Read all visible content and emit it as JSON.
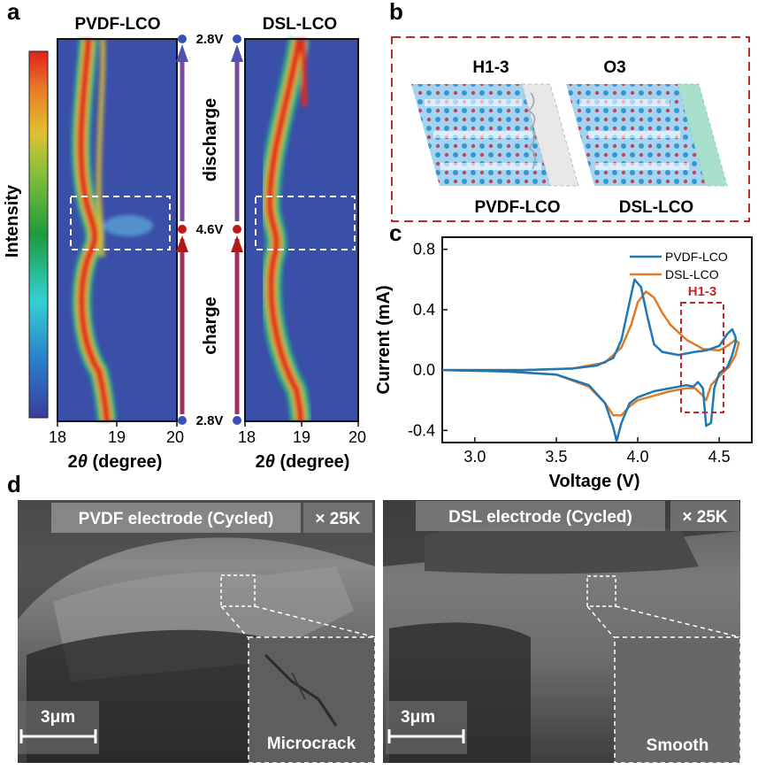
{
  "panels": {
    "a": "a",
    "b": "b",
    "c": "c",
    "d": "d"
  },
  "panel_a": {
    "left_title": "PVDF-LCO",
    "right_title": "DSL-LCO",
    "colorbar_label": "Intensity",
    "xticks": [
      "18",
      "19",
      "20"
    ],
    "right_xticks": [
      "18",
      "19",
      "20"
    ],
    "xlabel_pre": "2",
    "xlabel_theta": "θ",
    "xlabel_post": " (degree)",
    "voltage_top": "2.8V",
    "voltage_mid": "4.6V",
    "voltage_bottom": "2.8V",
    "arrow_up": "discharge",
    "arrow_down": "charge"
  },
  "panel_b": {
    "phase_left": "H1-3",
    "phase_right": "O3",
    "sample_left": "PVDF-LCO",
    "sample_right": "DSL-LCO"
  },
  "chart_data": {
    "type": "line",
    "xlabel": "Voltage (V)",
    "ylabel": "Current (mA)",
    "xlim": [
      2.8,
      4.7
    ],
    "ylim": [
      -0.48,
      0.88
    ],
    "xticks": [
      "3.0",
      "3.5",
      "4.0",
      "4.5"
    ],
    "yticks": [
      "0.8",
      "0.4",
      "0.0",
      "-0.4"
    ],
    "annotation": "H1-3",
    "series": [
      {
        "name": "PVDF-LCO",
        "color": "#1f77b4",
        "x": [
          2.8,
          3.3,
          3.6,
          3.75,
          3.85,
          3.9,
          3.95,
          3.98,
          4.02,
          4.06,
          4.1,
          4.15,
          4.25,
          4.35,
          4.42,
          4.5,
          4.55,
          4.58,
          4.6,
          4.6,
          4.58,
          4.55,
          4.5,
          4.47,
          4.45,
          4.42,
          4.4,
          4.37,
          4.34,
          4.3,
          4.2,
          4.1,
          4.0,
          3.95,
          3.9,
          3.87,
          3.85,
          3.8,
          3.7,
          3.5,
          3.2,
          2.8
        ],
        "y": [
          0.0,
          0.0,
          0.01,
          0.03,
          0.08,
          0.2,
          0.45,
          0.6,
          0.55,
          0.35,
          0.17,
          0.12,
          0.1,
          0.12,
          0.13,
          0.16,
          0.24,
          0.27,
          0.22,
          0.18,
          0.1,
          0.02,
          -0.02,
          -0.12,
          -0.35,
          -0.37,
          -0.12,
          -0.08,
          -0.11,
          -0.1,
          -0.12,
          -0.14,
          -0.18,
          -0.22,
          -0.35,
          -0.47,
          -0.38,
          -0.22,
          -0.1,
          -0.03,
          -0.01,
          0.0
        ]
      },
      {
        "name": "DSL-LCO",
        "color": "#e07b28",
        "x": [
          2.8,
          3.3,
          3.6,
          3.8,
          3.9,
          3.96,
          4.0,
          4.05,
          4.1,
          4.15,
          4.2,
          4.3,
          4.4,
          4.5,
          4.55,
          4.6,
          4.62,
          4.6,
          4.56,
          4.5,
          4.45,
          4.42,
          4.4,
          4.35,
          4.3,
          4.2,
          4.1,
          4.0,
          3.95,
          3.9,
          3.85,
          3.8,
          3.7,
          3.5,
          3.2,
          2.8
        ],
        "y": [
          0.0,
          0.0,
          0.01,
          0.05,
          0.15,
          0.3,
          0.45,
          0.52,
          0.48,
          0.38,
          0.3,
          0.2,
          0.14,
          0.13,
          0.16,
          0.2,
          0.18,
          0.1,
          0.02,
          -0.04,
          -0.1,
          -0.2,
          -0.17,
          -0.12,
          -0.12,
          -0.14,
          -0.17,
          -0.2,
          -0.24,
          -0.3,
          -0.3,
          -0.22,
          -0.11,
          -0.03,
          -0.01,
          0.0
        ]
      }
    ]
  },
  "panel_d": {
    "left_title": "PVDF electrode (Cycled)",
    "right_title": "DSL electrode (Cycled)",
    "magnification_left": "× 25K",
    "magnification_right": "× 25K",
    "scale_left": "3μm",
    "scale_right": "3μm",
    "inset_left": "Microcrack",
    "inset_right": "Smooth"
  }
}
